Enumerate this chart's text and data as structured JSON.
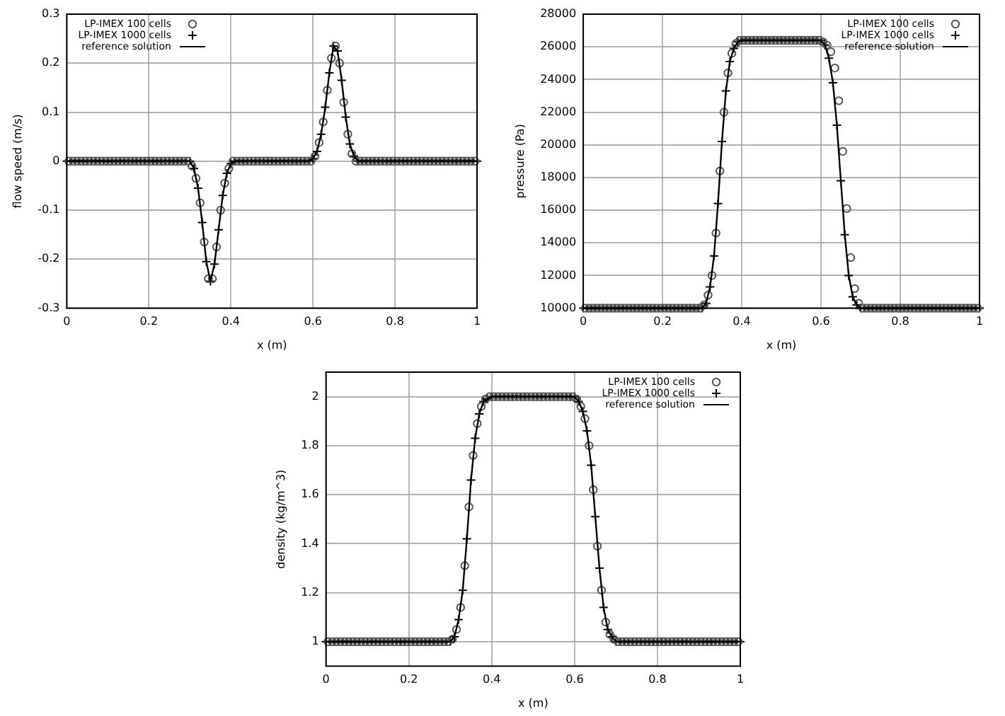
{
  "chart_data": [
    {
      "type": "line",
      "xlabel": "x (m)",
      "ylabel": "flow speed (m/s)",
      "xlim": [
        0,
        1
      ],
      "xticks": [
        0,
        0.2,
        0.4,
        0.6,
        0.8,
        1
      ],
      "ylim": [
        -0.3,
        0.3
      ],
      "yticks": [
        -0.3,
        -0.2,
        -0.1,
        0,
        0.1,
        0.2,
        0.3
      ],
      "grid": true,
      "legend": "top left",
      "x": [
        0,
        0.01,
        0.02,
        0.03,
        0.04,
        0.05,
        0.06,
        0.07,
        0.08,
        0.09,
        0.1,
        0.11,
        0.12,
        0.13,
        0.14,
        0.15,
        0.16,
        0.17,
        0.18,
        0.19,
        0.2,
        0.21,
        0.22,
        0.23,
        0.24,
        0.25,
        0.26,
        0.27,
        0.28,
        0.29,
        0.3,
        0.31,
        0.32,
        0.33,
        0.34,
        0.35,
        0.36,
        0.37,
        0.38,
        0.39,
        0.4,
        0.41,
        0.42,
        0.43,
        0.44,
        0.45,
        0.46,
        0.47,
        0.48,
        0.49,
        0.5,
        0.51,
        0.52,
        0.53,
        0.54,
        0.55,
        0.56,
        0.57,
        0.58,
        0.59,
        0.6,
        0.61,
        0.62,
        0.63,
        0.64,
        0.65,
        0.66,
        0.67,
        0.68,
        0.69,
        0.7,
        0.71,
        0.72,
        0.73,
        0.74,
        0.75,
        0.76,
        0.77,
        0.78,
        0.79,
        0.8,
        0.81,
        0.82,
        0.83,
        0.84,
        0.85,
        0.86,
        0.87,
        0.88,
        0.89,
        0.9,
        0.91,
        0.92,
        0.93,
        0.94,
        0.95,
        0.96,
        0.97,
        0.98,
        0.99,
        1
      ],
      "series": [
        {
          "name": "LP-IMEX 100 cells",
          "type": "scatter",
          "marker": "circle",
          "color": "#555555",
          "x": [
            0.005,
            0.015,
            0.025,
            0.035,
            0.045,
            0.055,
            0.065,
            0.075,
            0.085,
            0.095,
            0.105,
            0.115,
            0.125,
            0.135,
            0.145,
            0.155,
            0.165,
            0.175,
            0.185,
            0.195,
            0.205,
            0.215,
            0.225,
            0.235,
            0.245,
            0.255,
            0.265,
            0.275,
            0.285,
            0.295,
            0.305,
            0.315,
            0.325,
            0.335,
            0.345,
            0.355,
            0.365,
            0.375,
            0.385,
            0.395,
            0.405,
            0.415,
            0.425,
            0.435,
            0.445,
            0.455,
            0.465,
            0.475,
            0.485,
            0.495,
            0.505,
            0.515,
            0.525,
            0.535,
            0.545,
            0.555,
            0.565,
            0.575,
            0.585,
            0.595,
            0.605,
            0.615,
            0.625,
            0.635,
            0.645,
            0.655,
            0.665,
            0.675,
            0.685,
            0.695,
            0.705,
            0.715,
            0.725,
            0.735,
            0.745,
            0.755,
            0.765,
            0.775,
            0.785,
            0.795,
            0.805,
            0.815,
            0.825,
            0.835,
            0.845,
            0.855,
            0.865,
            0.875,
            0.885,
            0.895,
            0.905,
            0.915,
            0.925,
            0.935,
            0.945,
            0.955,
            0.965,
            0.975,
            0.985,
            0.995
          ],
          "values": [
            0,
            0,
            0,
            0,
            0,
            0,
            0,
            0,
            0,
            0,
            0,
            0,
            0,
            0,
            0,
            0,
            0,
            0,
            0,
            0,
            0,
            0,
            0,
            0,
            0,
            0,
            0,
            0,
            0,
            0,
            -0.01,
            -0.035,
            -0.085,
            -0.165,
            -0.24,
            -0.24,
            -0.175,
            -0.1,
            -0.045,
            -0.015,
            0,
            0,
            0,
            0,
            0,
            0,
            0,
            0,
            0,
            0,
            0,
            0,
            0,
            0,
            0,
            0,
            0,
            0,
            0,
            0,
            0.01,
            0.038,
            0.08,
            0.145,
            0.21,
            0.235,
            0.2,
            0.12,
            0.055,
            0.015,
            0,
            0,
            0,
            0,
            0,
            0,
            0,
            0,
            0,
            0,
            0,
            0,
            0,
            0,
            0,
            0,
            0,
            0,
            0,
            0,
            0,
            0,
            0,
            0,
            0,
            0,
            0,
            0,
            0,
            0
          ]
        },
        {
          "name": "LP-IMEX 1000 cells",
          "type": "scatter",
          "marker": "cross",
          "color": "#000000",
          "values": [
            0,
            0,
            0,
            0,
            0,
            0,
            0,
            0,
            0,
            0,
            0,
            0,
            0,
            0,
            0,
            0,
            0,
            0,
            0,
            0,
            0,
            0,
            0,
            0,
            0,
            0,
            0,
            0,
            0,
            0,
            0,
            -0.015,
            -0.055,
            -0.125,
            -0.205,
            -0.245,
            -0.21,
            -0.14,
            -0.07,
            -0.025,
            -0.005,
            0,
            0,
            0,
            0,
            0,
            0,
            0,
            0,
            0,
            0,
            0,
            0,
            0,
            0,
            0,
            0,
            0,
            0,
            0,
            0.005,
            0.02,
            0.055,
            0.11,
            0.18,
            0.235,
            0.225,
            0.165,
            0.09,
            0.035,
            0.01,
            0,
            0,
            0,
            0,
            0,
            0,
            0,
            0,
            0,
            0,
            0,
            0,
            0,
            0,
            0,
            0,
            0,
            0,
            0,
            0,
            0,
            0,
            0,
            0,
            0,
            0,
            0,
            0,
            0,
            0
          ]
        },
        {
          "name": "reference solution",
          "type": "line",
          "marker": "none",
          "color": "#000000",
          "values": [
            0,
            0,
            0,
            0,
            0,
            0,
            0,
            0,
            0,
            0,
            0,
            0,
            0,
            0,
            0,
            0,
            0,
            0,
            0,
            0,
            0,
            0,
            0,
            0,
            0,
            0,
            0,
            0,
            0,
            0,
            0,
            -0.015,
            -0.055,
            -0.125,
            -0.205,
            -0.245,
            -0.21,
            -0.14,
            -0.07,
            -0.025,
            -0.005,
            0,
            0,
            0,
            0,
            0,
            0,
            0,
            0,
            0,
            0,
            0,
            0,
            0,
            0,
            0,
            0,
            0,
            0,
            0,
            0.005,
            0.02,
            0.055,
            0.11,
            0.18,
            0.235,
            0.225,
            0.165,
            0.09,
            0.035,
            0.01,
            0,
            0,
            0,
            0,
            0,
            0,
            0,
            0,
            0,
            0,
            0,
            0,
            0,
            0,
            0,
            0,
            0,
            0,
            0,
            0,
            0,
            0,
            0,
            0,
            0,
            0,
            0,
            0,
            0,
            0
          ]
        }
      ]
    },
    {
      "type": "line",
      "xlabel": "x (m)",
      "ylabel": "pressure (Pa)",
      "xlim": [
        0,
        1
      ],
      "xticks": [
        0,
        0.2,
        0.4,
        0.6,
        0.8,
        1
      ],
      "ylim": [
        10000,
        28000
      ],
      "yticks": [
        10000,
        12000,
        14000,
        16000,
        18000,
        20000,
        22000,
        24000,
        26000,
        28000
      ],
      "grid": true,
      "legend": "top right",
      "x": [
        0,
        0.01,
        0.02,
        0.03,
        0.04,
        0.05,
        0.06,
        0.07,
        0.08,
        0.09,
        0.1,
        0.11,
        0.12,
        0.13,
        0.14,
        0.15,
        0.16,
        0.17,
        0.18,
        0.19,
        0.2,
        0.21,
        0.22,
        0.23,
        0.24,
        0.25,
        0.26,
        0.27,
        0.28,
        0.29,
        0.3,
        0.31,
        0.32,
        0.33,
        0.34,
        0.35,
        0.36,
        0.37,
        0.38,
        0.39,
        0.4,
        0.41,
        0.42,
        0.43,
        0.44,
        0.45,
        0.46,
        0.47,
        0.48,
        0.49,
        0.5,
        0.51,
        0.52,
        0.53,
        0.54,
        0.55,
        0.56,
        0.57,
        0.58,
        0.59,
        0.6,
        0.61,
        0.62,
        0.63,
        0.64,
        0.65,
        0.66,
        0.67,
        0.68,
        0.69,
        0.7,
        0.71,
        0.72,
        0.73,
        0.74,
        0.75,
        0.76,
        0.77,
        0.78,
        0.79,
        0.8,
        0.81,
        0.82,
        0.83,
        0.84,
        0.85,
        0.86,
        0.87,
        0.88,
        0.89,
        0.9,
        0.91,
        0.92,
        0.93,
        0.94,
        0.95,
        0.96,
        0.97,
        0.98,
        0.99,
        1
      ],
      "series": [
        {
          "name": "LP-IMEX 100 cells",
          "type": "scatter",
          "marker": "circle",
          "color": "#555555",
          "x": [
            0.005,
            0.015,
            0.025,
            0.035,
            0.045,
            0.055,
            0.065,
            0.075,
            0.085,
            0.095,
            0.105,
            0.115,
            0.125,
            0.135,
            0.145,
            0.155,
            0.165,
            0.175,
            0.185,
            0.195,
            0.205,
            0.215,
            0.225,
            0.235,
            0.245,
            0.255,
            0.265,
            0.275,
            0.285,
            0.295,
            0.305,
            0.315,
            0.325,
            0.335,
            0.345,
            0.355,
            0.365,
            0.375,
            0.385,
            0.395,
            0.405,
            0.415,
            0.425,
            0.435,
            0.445,
            0.455,
            0.465,
            0.475,
            0.485,
            0.495,
            0.505,
            0.515,
            0.525,
            0.535,
            0.545,
            0.555,
            0.565,
            0.575,
            0.585,
            0.595,
            0.605,
            0.615,
            0.625,
            0.635,
            0.645,
            0.655,
            0.665,
            0.675,
            0.685,
            0.695,
            0.705,
            0.715,
            0.725,
            0.735,
            0.745,
            0.755,
            0.765,
            0.775,
            0.785,
            0.795,
            0.805,
            0.815,
            0.825,
            0.835,
            0.845,
            0.855,
            0.865,
            0.875,
            0.885,
            0.895,
            0.905,
            0.915,
            0.925,
            0.935,
            0.945,
            0.955,
            0.965,
            0.975,
            0.985,
            0.995
          ],
          "values": [
            10000,
            10000,
            10000,
            10000,
            10000,
            10000,
            10000,
            10000,
            10000,
            10000,
            10000,
            10000,
            10000,
            10000,
            10000,
            10000,
            10000,
            10000,
            10000,
            10000,
            10000,
            10000,
            10000,
            10000,
            10000,
            10000,
            10000,
            10000,
            10000,
            10000,
            10200,
            10800,
            12000,
            14600,
            18400,
            22000,
            24400,
            25600,
            26200,
            26400,
            26400,
            26400,
            26400,
            26400,
            26400,
            26400,
            26400,
            26400,
            26400,
            26400,
            26400,
            26400,
            26400,
            26400,
            26400,
            26400,
            26400,
            26400,
            26400,
            26400,
            26300,
            26100,
            25700,
            24700,
            22700,
            19600,
            16100,
            13100,
            11200,
            10300,
            10000,
            10000,
            10000,
            10000,
            10000,
            10000,
            10000,
            10000,
            10000,
            10000,
            10000,
            10000,
            10000,
            10000,
            10000,
            10000,
            10000,
            10000,
            10000,
            10000,
            10000,
            10000,
            10000,
            10000,
            10000,
            10000,
            10000,
            10000,
            10000,
            10000
          ]
        },
        {
          "name": "LP-IMEX 1000 cells",
          "type": "scatter",
          "marker": "cross",
          "color": "#000000",
          "values": [
            10000,
            10000,
            10000,
            10000,
            10000,
            10000,
            10000,
            10000,
            10000,
            10000,
            10000,
            10000,
            10000,
            10000,
            10000,
            10000,
            10000,
            10000,
            10000,
            10000,
            10000,
            10000,
            10000,
            10000,
            10000,
            10000,
            10000,
            10000,
            10000,
            10000,
            10000,
            10300,
            11300,
            13200,
            16400,
            20200,
            23300,
            25100,
            25900,
            26300,
            26400,
            26400,
            26400,
            26400,
            26400,
            26400,
            26400,
            26400,
            26400,
            26400,
            26400,
            26400,
            26400,
            26400,
            26400,
            26400,
            26400,
            26400,
            26400,
            26400,
            26400,
            26100,
            25300,
            23800,
            21200,
            17800,
            14500,
            12000,
            10700,
            10200,
            10000,
            10000,
            10000,
            10000,
            10000,
            10000,
            10000,
            10000,
            10000,
            10000,
            10000,
            10000,
            10000,
            10000,
            10000,
            10000,
            10000,
            10000,
            10000,
            10000,
            10000,
            10000,
            10000,
            10000,
            10000,
            10000,
            10000,
            10000,
            10000,
            10000,
            10000
          ]
        },
        {
          "name": "reference solution",
          "type": "line",
          "marker": "none",
          "color": "#000000",
          "values": [
            10000,
            10000,
            10000,
            10000,
            10000,
            10000,
            10000,
            10000,
            10000,
            10000,
            10000,
            10000,
            10000,
            10000,
            10000,
            10000,
            10000,
            10000,
            10000,
            10000,
            10000,
            10000,
            10000,
            10000,
            10000,
            10000,
            10000,
            10000,
            10000,
            10000,
            10000,
            10300,
            11300,
            13200,
            16400,
            20200,
            23300,
            25100,
            25900,
            26300,
            26400,
            26400,
            26400,
            26400,
            26400,
            26400,
            26400,
            26400,
            26400,
            26400,
            26400,
            26400,
            26400,
            26400,
            26400,
            26400,
            26400,
            26400,
            26400,
            26400,
            26400,
            26100,
            25300,
            23800,
            21200,
            17800,
            14500,
            12000,
            10700,
            10200,
            10000,
            10000,
            10000,
            10000,
            10000,
            10000,
            10000,
            10000,
            10000,
            10000,
            10000,
            10000,
            10000,
            10000,
            10000,
            10000,
            10000,
            10000,
            10000,
            10000,
            10000,
            10000,
            10000,
            10000,
            10000,
            10000,
            10000,
            10000,
            10000,
            10000,
            10000
          ]
        }
      ]
    },
    {
      "type": "line",
      "xlabel": "x (m)",
      "ylabel": "density (kg/m^3)",
      "xlim": [
        0,
        1
      ],
      "xticks": [
        0,
        0.2,
        0.4,
        0.6,
        0.8,
        1
      ],
      "ylim": [
        0.9,
        2.1
      ],
      "yticks": [
        1,
        1.2,
        1.4,
        1.6,
        1.8,
        2
      ],
      "grid": true,
      "legend": "top right",
      "x": [
        0,
        0.01,
        0.02,
        0.03,
        0.04,
        0.05,
        0.06,
        0.07,
        0.08,
        0.09,
        0.1,
        0.11,
        0.12,
        0.13,
        0.14,
        0.15,
        0.16,
        0.17,
        0.18,
        0.19,
        0.2,
        0.21,
        0.22,
        0.23,
        0.24,
        0.25,
        0.26,
        0.27,
        0.28,
        0.29,
        0.3,
        0.31,
        0.32,
        0.33,
        0.34,
        0.35,
        0.36,
        0.37,
        0.38,
        0.39,
        0.4,
        0.41,
        0.42,
        0.43,
        0.44,
        0.45,
        0.46,
        0.47,
        0.48,
        0.49,
        0.5,
        0.51,
        0.52,
        0.53,
        0.54,
        0.55,
        0.56,
        0.57,
        0.58,
        0.59,
        0.6,
        0.61,
        0.62,
        0.63,
        0.64,
        0.65,
        0.66,
        0.67,
        0.68,
        0.69,
        0.7,
        0.71,
        0.72,
        0.73,
        0.74,
        0.75,
        0.76,
        0.77,
        0.78,
        0.79,
        0.8,
        0.81,
        0.82,
        0.83,
        0.84,
        0.85,
        0.86,
        0.87,
        0.88,
        0.89,
        0.9,
        0.91,
        0.92,
        0.93,
        0.94,
        0.95,
        0.96,
        0.97,
        0.98,
        0.99,
        1
      ],
      "series": [
        {
          "name": "LP-IMEX 100 cells",
          "type": "scatter",
          "marker": "circle",
          "color": "#555555",
          "x": [
            0.005,
            0.015,
            0.025,
            0.035,
            0.045,
            0.055,
            0.065,
            0.075,
            0.085,
            0.095,
            0.105,
            0.115,
            0.125,
            0.135,
            0.145,
            0.155,
            0.165,
            0.175,
            0.185,
            0.195,
            0.205,
            0.215,
            0.225,
            0.235,
            0.245,
            0.255,
            0.265,
            0.275,
            0.285,
            0.295,
            0.305,
            0.315,
            0.325,
            0.335,
            0.345,
            0.355,
            0.365,
            0.375,
            0.385,
            0.395,
            0.405,
            0.415,
            0.425,
            0.435,
            0.445,
            0.455,
            0.465,
            0.475,
            0.485,
            0.495,
            0.505,
            0.515,
            0.525,
            0.535,
            0.545,
            0.555,
            0.565,
            0.575,
            0.585,
            0.595,
            0.605,
            0.615,
            0.625,
            0.635,
            0.645,
            0.655,
            0.665,
            0.675,
            0.685,
            0.695,
            0.705,
            0.715,
            0.725,
            0.735,
            0.745,
            0.755,
            0.765,
            0.775,
            0.785,
            0.795,
            0.805,
            0.815,
            0.825,
            0.835,
            0.845,
            0.855,
            0.865,
            0.875,
            0.885,
            0.895,
            0.905,
            0.915,
            0.925,
            0.935,
            0.945,
            0.955,
            0.965,
            0.975,
            0.985,
            0.995
          ],
          "values": [
            1,
            1,
            1,
            1,
            1,
            1,
            1,
            1,
            1,
            1,
            1,
            1,
            1,
            1,
            1,
            1,
            1,
            1,
            1,
            1,
            1,
            1,
            1,
            1,
            1,
            1,
            1,
            1,
            1,
            1,
            1.01,
            1.05,
            1.14,
            1.31,
            1.55,
            1.76,
            1.89,
            1.96,
            1.99,
            2,
            2,
            2,
            2,
            2,
            2,
            2,
            2,
            2,
            2,
            2,
            2,
            2,
            2,
            2,
            2,
            2,
            2,
            2,
            2,
            2,
            1.99,
            1.96,
            1.91,
            1.8,
            1.62,
            1.39,
            1.21,
            1.08,
            1.03,
            1.01,
            1,
            1,
            1,
            1,
            1,
            1,
            1,
            1,
            1,
            1,
            1,
            1,
            1,
            1,
            1,
            1,
            1,
            1,
            1,
            1,
            1,
            1,
            1,
            1,
            1,
            1,
            1,
            1,
            1,
            1
          ]
        },
        {
          "name": "LP-IMEX 1000 cells",
          "type": "scatter",
          "marker": "cross",
          "color": "#000000",
          "values": [
            1,
            1,
            1,
            1,
            1,
            1,
            1,
            1,
            1,
            1,
            1,
            1,
            1,
            1,
            1,
            1,
            1,
            1,
            1,
            1,
            1,
            1,
            1,
            1,
            1,
            1,
            1,
            1,
            1,
            1,
            1,
            1.02,
            1.09,
            1.21,
            1.42,
            1.66,
            1.83,
            1.93,
            1.98,
            1.99,
            2,
            2,
            2,
            2,
            2,
            2,
            2,
            2,
            2,
            2,
            2,
            2,
            2,
            2,
            2,
            2,
            2,
            2,
            2,
            2,
            2,
            1.98,
            1.94,
            1.86,
            1.72,
            1.51,
            1.3,
            1.14,
            1.05,
            1.02,
            1,
            1,
            1,
            1,
            1,
            1,
            1,
            1,
            1,
            1,
            1,
            1,
            1,
            1,
            1,
            1,
            1,
            1,
            1,
            1,
            1,
            1,
            1,
            1,
            1,
            1,
            1,
            1,
            1,
            1,
            1
          ]
        },
        {
          "name": "reference solution",
          "type": "line",
          "marker": "none",
          "color": "#000000",
          "values": [
            1,
            1,
            1,
            1,
            1,
            1,
            1,
            1,
            1,
            1,
            1,
            1,
            1,
            1,
            1,
            1,
            1,
            1,
            1,
            1,
            1,
            1,
            1,
            1,
            1,
            1,
            1,
            1,
            1,
            1,
            1,
            1.02,
            1.09,
            1.21,
            1.42,
            1.66,
            1.83,
            1.93,
            1.98,
            1.99,
            2,
            2,
            2,
            2,
            2,
            2,
            2,
            2,
            2,
            2,
            2,
            2,
            2,
            2,
            2,
            2,
            2,
            2,
            2,
            2,
            2,
            1.98,
            1.94,
            1.86,
            1.72,
            1.51,
            1.3,
            1.14,
            1.05,
            1.02,
            1,
            1,
            1,
            1,
            1,
            1,
            1,
            1,
            1,
            1,
            1,
            1,
            1,
            1,
            1,
            1,
            1,
            1,
            1,
            1,
            1,
            1,
            1,
            1,
            1,
            1,
            1,
            1,
            1,
            1,
            1
          ]
        }
      ]
    }
  ]
}
